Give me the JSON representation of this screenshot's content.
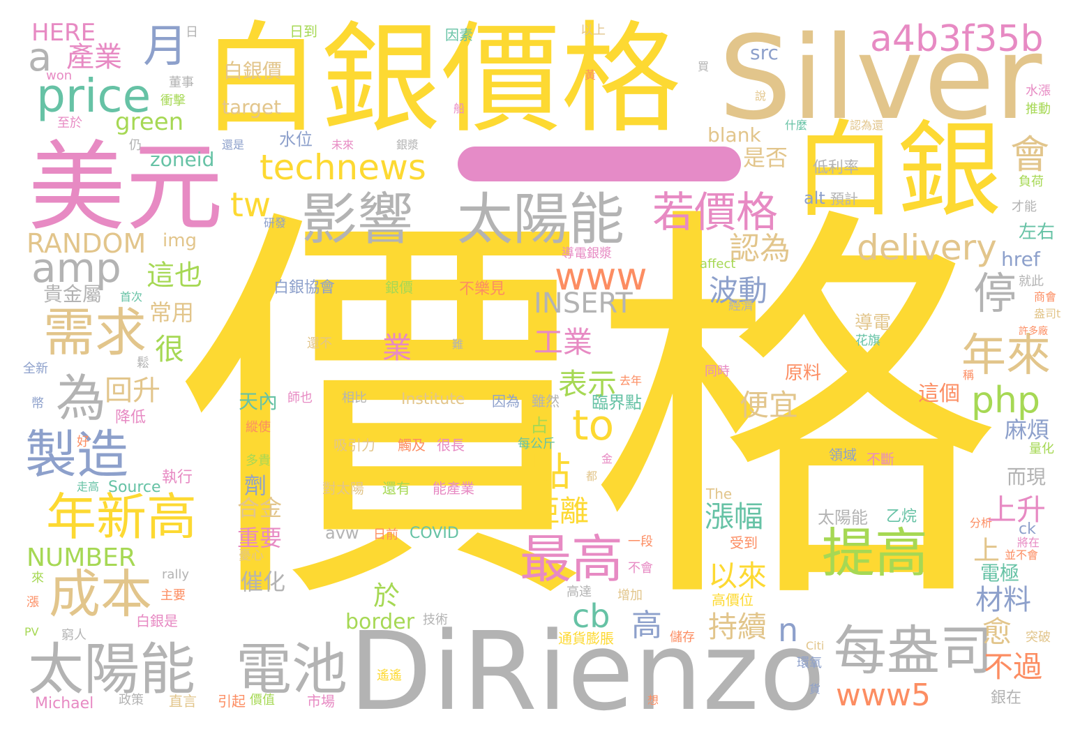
{
  "palette": {
    "yellow": "#fdd932",
    "tan": "#e2c58b",
    "gray": "#b3b3b3",
    "pink": "#e78ac3",
    "green": "#a6d854",
    "teal": "#66c2a5",
    "blue": "#8da0cb",
    "orange": "#fc8d62"
  },
  "words": [
    {
      "text": "價格",
      "color": "#fdd932"
    },
    {
      "text": "白銀價格",
      "color": "#fdd932"
    },
    {
      "text": "Silver",
      "color": "#e2c58b"
    },
    {
      "text": "白銀",
      "color": "#fdd932"
    },
    {
      "text": "美元",
      "color": "#e78ac3"
    },
    {
      "text": "DiRienzo",
      "color": "#b3b3b3"
    },
    {
      "text": "影響",
      "color": "#b3b3b3"
    },
    {
      "text": "太陽能",
      "color": "#b3b3b3"
    },
    {
      "text": "太陽能",
      "color": "#b3b3b3"
    },
    {
      "text": "電池",
      "color": "#b3b3b3"
    },
    {
      "text": "每盎司",
      "color": "#b3b3b3"
    },
    {
      "text": "price",
      "color": "#66c2a5"
    },
    {
      "text": "a4b3f35b",
      "color": "#e78ac3"
    },
    {
      "text": "technews",
      "color": "#fdd932"
    },
    {
      "text": "若價格",
      "color": "#e78ac3"
    },
    {
      "text": "delivery",
      "color": "#e2c58b"
    },
    {
      "text": "amp",
      "color": "#b3b3b3"
    },
    {
      "text": "需求",
      "color": "#e2c58b"
    },
    {
      "text": "製造",
      "color": "#8da0cb"
    },
    {
      "text": "年新高",
      "color": "#fdd932"
    },
    {
      "text": "成本",
      "color": "#e2c58b"
    },
    {
      "text": "最高",
      "color": "#e78ac3"
    },
    {
      "text": "提高",
      "color": "#a6d854"
    },
    {
      "text": "www",
      "color": "#fc8d62"
    },
    {
      "text": "www5",
      "color": "#fc8d62"
    },
    {
      "text": "php",
      "color": "#a6d854"
    },
    {
      "text": "年來",
      "color": "#e2c58b"
    },
    {
      "text": "月",
      "color": "#8da0cb"
    },
    {
      "text": "為",
      "color": "#b3b3b3"
    },
    {
      "text": "to",
      "color": "#fdd932"
    },
    {
      "text": "tw",
      "color": "#fdd932"
    },
    {
      "text": "點",
      "color": "#fdd932"
    },
    {
      "text": "停",
      "color": "#b3b3b3"
    },
    {
      "text": "會",
      "color": "#e2c58b"
    },
    {
      "text": "a",
      "color": "#b3b3b3"
    },
    {
      "text": "INSERT",
      "color": "#b3b3b3"
    },
    {
      "text": "RANDOM",
      "color": "#e2c58b"
    },
    {
      "text": "NUMBER",
      "color": "#a6d854"
    },
    {
      "text": "HERE",
      "color": "#e78ac3"
    },
    {
      "text": "green",
      "color": "#a6d854"
    },
    {
      "text": "產業",
      "color": "#e78ac3"
    },
    {
      "text": "這也",
      "color": "#a6d854"
    },
    {
      "text": "回升",
      "color": "#e2c58b"
    },
    {
      "text": "常用",
      "color": "#e2c58b"
    },
    {
      "text": "很",
      "color": "#a6d854"
    },
    {
      "text": "認為",
      "color": "#e2c58b"
    },
    {
      "text": "波動",
      "color": "#8da0cb"
    },
    {
      "text": "工業",
      "color": "#e78ac3"
    },
    {
      "text": "表示",
      "color": "#a6d854"
    },
    {
      "text": "便宜",
      "color": "#e2c58b"
    },
    {
      "text": "距離",
      "color": "#fdd932"
    },
    {
      "text": "上升",
      "color": "#e78ac3"
    },
    {
      "text": "漲幅",
      "color": "#66c2a5"
    },
    {
      "text": "以來",
      "color": "#fdd932"
    },
    {
      "text": "cb",
      "color": "#66c2a5"
    },
    {
      "text": "於",
      "color": "#a6d854"
    },
    {
      "text": "n",
      "color": "#8da0cb"
    },
    {
      "text": "持續",
      "color": "#e2c58b"
    },
    {
      "text": "高",
      "color": "#8da0cb"
    },
    {
      "text": "不過",
      "color": "#fc8d62"
    },
    {
      "text": "材料",
      "color": "#8da0cb"
    },
    {
      "text": "愈",
      "color": "#e2c58b"
    },
    {
      "text": "上",
      "color": "#e2c58b"
    },
    {
      "text": "業",
      "color": "#e78ac3"
    },
    {
      "text": "blank",
      "color": "#e2c58b"
    },
    {
      "text": "是否",
      "color": "#e2c58b"
    },
    {
      "text": "zoneid",
      "color": "#66c2a5"
    },
    {
      "text": "水位",
      "color": "#8da0cb"
    },
    {
      "text": "img",
      "color": "#e2c58b"
    },
    {
      "text": "白銀價",
      "color": "#e2c58b"
    },
    {
      "text": "target",
      "color": "#e2c58b"
    },
    {
      "text": "src",
      "color": "#8da0cb"
    },
    {
      "text": "alt",
      "color": "#8da0cb"
    },
    {
      "text": "href",
      "color": "#8da0cb"
    },
    {
      "text": "低利率",
      "color": "#b3b3b3"
    },
    {
      "text": "麻煩",
      "color": "#8da0cb"
    },
    {
      "text": "而現",
      "color": "#b3b3b3"
    },
    {
      "text": "電極",
      "color": "#66c2a5"
    },
    {
      "text": "左右",
      "color": "#66c2a5"
    },
    {
      "text": "這個",
      "color": "#fc8d62"
    },
    {
      "text": "導電",
      "color": "#e2c58b"
    },
    {
      "text": "原料",
      "color": "#fc8d62"
    },
    {
      "text": "臨界點",
      "color": "#66c2a5"
    },
    {
      "text": "天內",
      "color": "#66c2a5"
    },
    {
      "text": "合金",
      "color": "#e2c58b"
    },
    {
      "text": "重要",
      "color": "#e78ac3"
    },
    {
      "text": "催化",
      "color": "#b3b3b3"
    },
    {
      "text": "劑",
      "color": "#8da0cb"
    },
    {
      "text": "border",
      "color": "#a6d854"
    },
    {
      "text": "貴金屬",
      "color": "#b3b3b3"
    },
    {
      "text": "降低",
      "color": "#e78ac3"
    },
    {
      "text": "執行",
      "color": "#e78ac3"
    },
    {
      "text": "Source",
      "color": "#66c2a5"
    },
    {
      "text": "Institute",
      "color": "#e2c58b"
    },
    {
      "text": "COVID",
      "color": "#66c2a5"
    },
    {
      "text": "avw",
      "color": "#b3b3b3"
    },
    {
      "text": "吸引力",
      "color": "#e2c58b"
    },
    {
      "text": "觸及",
      "color": "#fc8d62"
    },
    {
      "text": "很長",
      "color": "#e78ac3"
    },
    {
      "text": "對太陽",
      "color": "#e2c58b"
    },
    {
      "text": "還有",
      "color": "#a6d854"
    },
    {
      "text": "能產業",
      "color": "#e78ac3"
    },
    {
      "text": "太陽能",
      "color": "#b3b3b3"
    },
    {
      "text": "乙烷",
      "color": "#66c2a5"
    },
    {
      "text": "Michael",
      "color": "#e78ac3"
    },
    {
      "text": "直言",
      "color": "#e2c58b"
    },
    {
      "text": "引起",
      "color": "#fc8d62"
    },
    {
      "text": "市場",
      "color": "#e78ac3"
    },
    {
      "text": "價值",
      "color": "#a6d854"
    },
    {
      "text": "政策",
      "color": "#b3b3b3"
    },
    {
      "text": "通貨膨脹",
      "color": "#fdd932"
    },
    {
      "text": "白銀協會",
      "color": "#8da0cb"
    },
    {
      "text": "銀價",
      "color": "#a6d854"
    },
    {
      "text": "不樂見",
      "color": "#fc8d62"
    },
    {
      "text": "日到",
      "color": "#a6d854"
    },
    {
      "text": "因素",
      "color": "#66c2a5"
    },
    {
      "text": "以上",
      "color": "#e2c58b"
    },
    {
      "text": "導電銀漿",
      "color": "#e78ac3"
    },
    {
      "text": "affect",
      "color": "#a6d854"
    },
    {
      "text": "高價位",
      "color": "#fdd932"
    },
    {
      "text": "增加",
      "color": "#e2c58b"
    },
    {
      "text": "高達",
      "color": "#b3b3b3"
    },
    {
      "text": "儲存",
      "color": "#fc8d62"
    },
    {
      "text": "環氧",
      "color": "#8da0cb"
    },
    {
      "text": "突破",
      "color": "#e2c58b"
    },
    {
      "text": "分析",
      "color": "#fc8d62"
    },
    {
      "text": "將在",
      "color": "#e78ac3"
    },
    {
      "text": "並不會",
      "color": "#fc8d62"
    },
    {
      "text": "量化",
      "color": "#a6d854"
    },
    {
      "text": "不斷",
      "color": "#e78ac3"
    },
    {
      "text": "領域",
      "color": "#8da0cb"
    },
    {
      "text": "盎司t",
      "color": "#e2c58b"
    },
    {
      "text": "許多廠",
      "color": "#fc8d62"
    },
    {
      "text": "花旗",
      "color": "#66c2a5"
    },
    {
      "text": "同時",
      "color": "#e78ac3"
    },
    {
      "text": "去年",
      "color": "#fc8d62"
    },
    {
      "text": "雖然",
      "color": "#b3b3b3"
    },
    {
      "text": "因為",
      "color": "#8da0cb"
    },
    {
      "text": "相比",
      "color": "#b3b3b3"
    },
    {
      "text": "師也",
      "color": "#e78ac3"
    },
    {
      "text": "縱使",
      "color": "#fc8d62"
    },
    {
      "text": "多貴",
      "color": "#a6d854"
    },
    {
      "text": "每公斤",
      "color": "#66c2a5"
    },
    {
      "text": "占",
      "color": "#a6d854"
    },
    {
      "text": "金",
      "color": "#e78ac3"
    },
    {
      "text": "都",
      "color": "#e2c58b"
    },
    {
      "text": "The",
      "color": "#e2c58b"
    },
    {
      "text": "受到",
      "color": "#fc8d62"
    },
    {
      "text": "一段",
      "color": "#fc8d62"
    },
    {
      "text": "不會",
      "color": "#e78ac3"
    },
    {
      "text": "日前",
      "color": "#fc8d62"
    },
    {
      "text": "憂心",
      "color": "#e2c58b"
    },
    {
      "text": "rally",
      "color": "#b3b3b3"
    },
    {
      "text": "主要",
      "color": "#fc8d62"
    },
    {
      "text": "白銀是",
      "color": "#e78ac3"
    },
    {
      "text": "技術",
      "color": "#b3b3b3"
    },
    {
      "text": "窮人",
      "color": "#b3b3b3"
    },
    {
      "text": "PV",
      "color": "#a6d854"
    },
    {
      "text": "Citi",
      "color": "#e2c58b"
    },
    {
      "text": "遙遙",
      "color": "#fdd932"
    },
    {
      "text": "想",
      "color": "#fc8d62"
    },
    {
      "text": "貨",
      "color": "#8da0cb"
    },
    {
      "text": "銀在",
      "color": "#b3b3b3"
    },
    {
      "text": "日",
      "color": "#b3b3b3"
    },
    {
      "text": "won",
      "color": "#e78ac3"
    },
    {
      "text": "董事",
      "color": "#b3b3b3"
    },
    {
      "text": "衝擊",
      "color": "#a6d854"
    },
    {
      "text": "至於",
      "color": "#e78ac3"
    },
    {
      "text": "仍",
      "color": "#b3b3b3"
    },
    {
      "text": "還是",
      "color": "#8da0cb"
    },
    {
      "text": "未來",
      "color": "#e78ac3"
    },
    {
      "text": "銀漿",
      "color": "#b3b3b3"
    },
    {
      "text": "什麼",
      "color": "#66c2a5"
    },
    {
      "text": "認為還",
      "color": "#e2c58b"
    },
    {
      "text": "預計",
      "color": "#b3b3b3"
    },
    {
      "text": "負荷",
      "color": "#a6d854"
    },
    {
      "text": "才能",
      "color": "#b3b3b3"
    },
    {
      "text": "水漲",
      "color": "#e78ac3"
    },
    {
      "text": "推動",
      "color": "#a6d854"
    },
    {
      "text": "首次",
      "color": "#66c2a5"
    },
    {
      "text": "研發",
      "color": "#8da0cb"
    },
    {
      "text": "經濟",
      "color": "#b3b3b3"
    },
    {
      "text": "就此",
      "color": "#b3b3b3"
    },
    {
      "text": "商會",
      "color": "#fc8d62"
    },
    {
      "text": "還不",
      "color": "#e2c58b"
    },
    {
      "text": "難",
      "color": "#b3b3b3"
    },
    {
      "text": "全新",
      "color": "#8da0cb"
    },
    {
      "text": "幣",
      "color": "#8da0cb"
    },
    {
      "text": "鬆",
      "color": "#b3b3b3"
    },
    {
      "text": "好",
      "color": "#fc8d62"
    },
    {
      "text": "走高",
      "color": "#66c2a5"
    },
    {
      "text": "來",
      "color": "#a6d854"
    },
    {
      "text": "漲",
      "color": "#fc8d62"
    },
    {
      "text": "黃",
      "color": "#fc8d62"
    },
    {
      "text": "說",
      "color": "#e2c58b"
    },
    {
      "text": "船",
      "color": "#e78ac3"
    },
    {
      "text": "買",
      "color": "#b3b3b3"
    },
    {
      "text": "稱",
      "color": "#fc8d62"
    },
    {
      "text": "ck",
      "color": "#8da0cb"
    }
  ]
}
